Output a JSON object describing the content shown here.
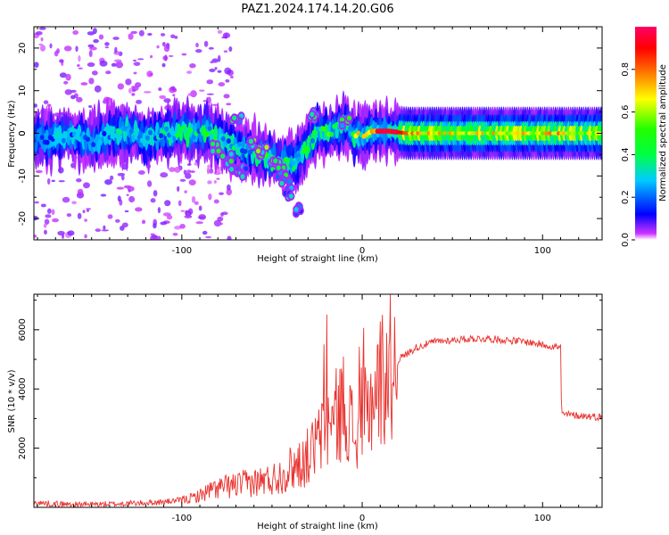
{
  "title": "PAZ1.2024.174.14.20.G06",
  "colors": {
    "snr_line": "#e8322e",
    "axis": "#000000",
    "background": "#ffffff"
  },
  "chart_data": [
    {
      "type": "heatmap",
      "xlabel": "Height of straight line (km)",
      "ylabel": "Frequency (Hz)",
      "xlim": [
        -182,
        133
      ],
      "ylim": [
        -25,
        25
      ],
      "x_ticks": [
        -100,
        0,
        100
      ],
      "y_ticks": [
        -20,
        -10,
        0,
        10,
        20
      ],
      "grid": false,
      "colorbar": {
        "label": "Normalized spectral amplitude",
        "range": [
          0,
          1
        ],
        "ticks": [
          0.0,
          0.2,
          0.4,
          0.6,
          0.8
        ],
        "colormap": "hsv-reversed"
      },
      "ridge": [
        {
          "x": -180,
          "f": -1.5,
          "a": 0.22
        },
        {
          "x": -170,
          "f": -1.0,
          "a": 0.28
        },
        {
          "x": -160,
          "f": -0.5,
          "a": 0.3
        },
        {
          "x": -150,
          "f": -2.0,
          "a": 0.26
        },
        {
          "x": -140,
          "f": -0.5,
          "a": 0.3
        },
        {
          "x": -130,
          "f": 0.5,
          "a": 0.32
        },
        {
          "x": -120,
          "f": -1.0,
          "a": 0.3
        },
        {
          "x": -110,
          "f": 0.0,
          "a": 0.35
        },
        {
          "x": -100,
          "f": 0.5,
          "a": 0.38
        },
        {
          "x": -95,
          "f": 0.0,
          "a": 0.4
        },
        {
          "x": -85,
          "f": 0.5,
          "a": 0.45
        },
        {
          "x": -80,
          "f": -1.5,
          "a": 0.35
        },
        {
          "x": -70,
          "f": -3.0,
          "a": 0.35
        },
        {
          "x": -60,
          "f": -4.5,
          "a": 0.4
        },
        {
          "x": -50,
          "f": -6.0,
          "a": 0.45
        },
        {
          "x": -42,
          "f": -7.0,
          "a": 0.5
        },
        {
          "x": -35,
          "f": -6.0,
          "a": 0.45
        },
        {
          "x": -30,
          "f": -3.0,
          "a": 0.4
        },
        {
          "x": -25,
          "f": 1.0,
          "a": 0.45
        },
        {
          "x": -20,
          "f": 0.0,
          "a": 0.6
        },
        {
          "x": -15,
          "f": 1.0,
          "a": 0.55
        },
        {
          "x": -8,
          "f": 2.0,
          "a": 0.5
        },
        {
          "x": -5,
          "f": -1.0,
          "a": 0.55
        },
        {
          "x": 0,
          "f": -1.0,
          "a": 0.7
        },
        {
          "x": 5,
          "f": 0.5,
          "a": 0.85
        },
        {
          "x": 15,
          "f": 0.5,
          "a": 0.95
        },
        {
          "x": 25,
          "f": 0.0,
          "a": 0.8
        },
        {
          "x": 40,
          "f": 0.0,
          "a": 0.7
        },
        {
          "x": 60,
          "f": 0.0,
          "a": 0.7
        },
        {
          "x": 80,
          "f": 0.0,
          "a": 0.7
        },
        {
          "x": 100,
          "f": 0.0,
          "a": 0.7
        },
        {
          "x": 110,
          "f": 0.0,
          "a": 0.75
        },
        {
          "x": 120,
          "f": 0.0,
          "a": 0.65
        },
        {
          "x": 133,
          "f": 0.0,
          "a": 0.65
        }
      ],
      "branches": [
        {
          "x": -70,
          "f": 4.0,
          "a": 0.45
        },
        {
          "x": -60,
          "f": -2.0,
          "a": 0.5
        },
        {
          "x": -55,
          "f": -4.0,
          "a": 0.55
        },
        {
          "x": -48,
          "f": -7.0,
          "a": 0.5
        },
        {
          "x": -45,
          "f": -9.0,
          "a": 0.4
        },
        {
          "x": -42,
          "f": -12.0,
          "a": 0.35
        },
        {
          "x": -40,
          "f": -14.0,
          "a": 0.3
        },
        {
          "x": -35,
          "f": -18.0,
          "a": 0.25
        },
        {
          "x": -80,
          "f": -3.5,
          "a": 0.4
        },
        {
          "x": -75,
          "f": -6.0,
          "a": 0.4
        },
        {
          "x": -70,
          "f": -8.5,
          "a": 0.35
        },
        {
          "x": -65,
          "f": -9.0,
          "a": 0.3
        },
        {
          "x": -28,
          "f": 4.0,
          "a": 0.4
        },
        {
          "x": -10,
          "f": 3.0,
          "a": 0.45
        }
      ]
    },
    {
      "type": "line",
      "xlabel": "Height of straight line (km)",
      "ylabel": "SNR (10 * v/v)",
      "xlim": [
        -182,
        133
      ],
      "ylim": [
        0,
        7200
      ],
      "x_ticks": [
        -100,
        0,
        100
      ],
      "y_ticks": [
        2000,
        4000,
        6000
      ],
      "grid": false,
      "series": [
        {
          "color": "#e8322e",
          "x": [
            -182,
            -170,
            -160,
            -150,
            -140,
            -130,
            -120,
            -110,
            -100,
            -95,
            -90,
            -85,
            -80,
            -75,
            -70,
            -65,
            -60,
            -55,
            -50,
            -45,
            -40,
            -35,
            -30,
            -27,
            -25,
            -22,
            -20,
            -17,
            -15,
            -12,
            -10,
            -8,
            -5,
            -3,
            0,
            2,
            5,
            8,
            10,
            15,
            20,
            25,
            30,
            40,
            50,
            60,
            70,
            80,
            90,
            100,
            105,
            110,
            110.5,
            120,
            133
          ],
          "y": [
            150,
            120,
            100,
            100,
            110,
            130,
            150,
            180,
            250,
            300,
            400,
            550,
            650,
            700,
            750,
            800,
            850,
            900,
            950,
            1100,
            1300,
            1500,
            1700,
            2000,
            2200,
            2400,
            2600,
            2800,
            3000,
            3300,
            3500,
            3200,
            2600,
            2200,
            2500,
            3200,
            3700,
            4000,
            4300,
            4700,
            5000,
            5200,
            5400,
            5600,
            5650,
            5700,
            5700,
            5650,
            5600,
            5500,
            5450,
            5400,
            3150,
            3100,
            3050
          ]
        }
      ]
    }
  ]
}
